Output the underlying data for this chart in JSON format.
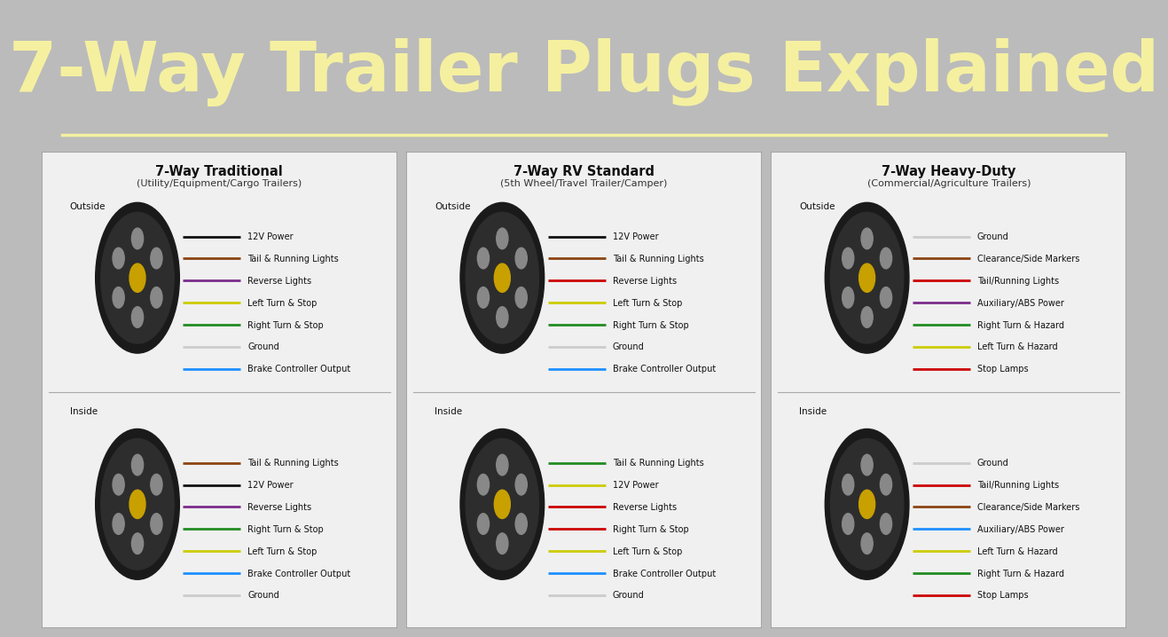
{
  "title": "7-Way Trailer Plugs Explained",
  "title_color": "#F5F0A0",
  "title_bg": "#6A1F9E",
  "underline_color": "#F5F0A0",
  "content_bg": "#BBBBBB",
  "panel_bg": "#F0F0F0",
  "columns": [
    {
      "title": "7-Way Traditional",
      "subtitle": "(Utility/Equipment/Cargo Trailers)",
      "outside_label": "Outside",
      "inside_label": "Inside",
      "outside_wires": [
        {
          "label": "12V Power",
          "color": "#111111"
        },
        {
          "label": "Tail & Running Lights",
          "color": "#8B4513"
        },
        {
          "label": "Reverse Lights",
          "color": "#7B2D8B"
        },
        {
          "label": "Left Turn & Stop",
          "color": "#CCCC00"
        },
        {
          "label": "Right Turn & Stop",
          "color": "#228B22"
        },
        {
          "label": "Ground",
          "color": "#CCCCCC"
        },
        {
          "label": "Brake Controller Output",
          "color": "#1E90FF"
        }
      ],
      "inside_wires": [
        {
          "label": "Tail & Running Lights",
          "color": "#8B4513"
        },
        {
          "label": "12V Power",
          "color": "#111111"
        },
        {
          "label": "Reverse Lights",
          "color": "#7B2D8B"
        },
        {
          "label": "Right Turn & Stop",
          "color": "#228B22"
        },
        {
          "label": "Left Turn & Stop",
          "color": "#CCCC00"
        },
        {
          "label": "Brake Controller Output",
          "color": "#1E90FF"
        },
        {
          "label": "Ground",
          "color": "#CCCCCC"
        }
      ]
    },
    {
      "title": "7-Way RV Standard",
      "subtitle": "(5th Wheel/Travel Trailer/Camper)",
      "outside_label": "Outside",
      "inside_label": "Inside",
      "outside_wires": [
        {
          "label": "12V Power",
          "color": "#111111"
        },
        {
          "label": "Tail & Running Lights",
          "color": "#8B4513"
        },
        {
          "label": "Reverse Lights",
          "color": "#CC0000"
        },
        {
          "label": "Left Turn & Stop",
          "color": "#CCCC00"
        },
        {
          "label": "Right Turn & Stop",
          "color": "#228B22"
        },
        {
          "label": "Ground",
          "color": "#CCCCCC"
        },
        {
          "label": "Brake Controller Output",
          "color": "#1E90FF"
        }
      ],
      "inside_wires": [
        {
          "label": "Tail & Running Lights",
          "color": "#228B22"
        },
        {
          "label": "12V Power",
          "color": "#CCCC00"
        },
        {
          "label": "Reverse Lights",
          "color": "#CC0000"
        },
        {
          "label": "Right Turn & Stop",
          "color": "#CC0000"
        },
        {
          "label": "Left Turn & Stop",
          "color": "#CCCC00"
        },
        {
          "label": "Brake Controller Output",
          "color": "#1E90FF"
        },
        {
          "label": "Ground",
          "color": "#CCCCCC"
        }
      ]
    },
    {
      "title": "7-Way Heavy-Duty",
      "subtitle": "(Commercial/Agriculture Trailers)",
      "outside_label": "Outside",
      "inside_label": "Inside",
      "outside_wires": [
        {
          "label": "Ground",
          "color": "#CCCCCC"
        },
        {
          "label": "Clearance/Side Markers",
          "color": "#8B4513"
        },
        {
          "label": "Tail/Running Lights",
          "color": "#CC0000"
        },
        {
          "label": "Auxiliary/ABS Power",
          "color": "#7B2D8B"
        },
        {
          "label": "Right Turn & Hazard",
          "color": "#228B22"
        },
        {
          "label": "Left Turn & Hazard",
          "color": "#CCCC00"
        },
        {
          "label": "Stop Lamps",
          "color": "#CC0000"
        }
      ],
      "inside_wires": [
        {
          "label": "Ground",
          "color": "#CCCCCC"
        },
        {
          "label": "Tail/Running Lights",
          "color": "#CC0000"
        },
        {
          "label": "Clearance/Side Markers",
          "color": "#8B4513"
        },
        {
          "label": "Auxiliary/ABS Power",
          "color": "#1E90FF"
        },
        {
          "label": "Left Turn & Hazard",
          "color": "#CCCC00"
        },
        {
          "label": "Right Turn & Hazard",
          "color": "#228B22"
        },
        {
          "label": "Stop Lamps",
          "color": "#CC0000"
        }
      ]
    }
  ]
}
